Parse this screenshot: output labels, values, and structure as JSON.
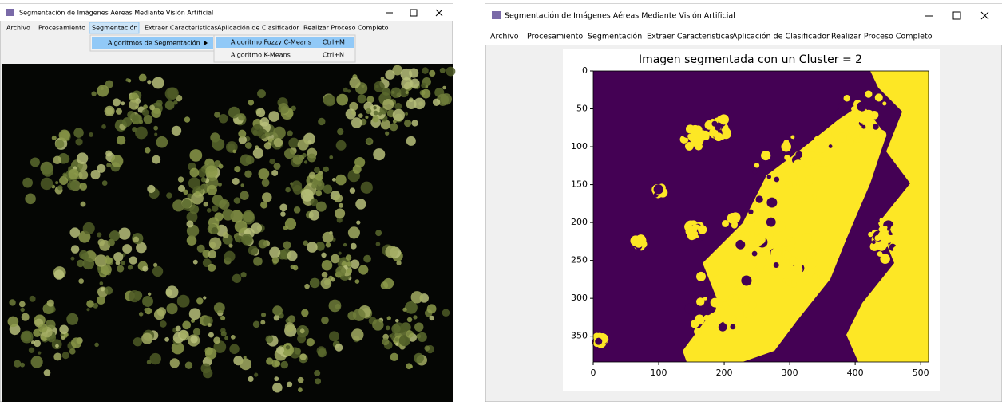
{
  "left_window": {
    "title": "Segmentación de Imágenes Aéreas Mediante Visión Artificial",
    "menu": [
      "Archivo",
      "Procesamiento",
      "Segmentación",
      "Extraer Caracteristicas",
      "Aplicación de Clasificador",
      "Realizar Proceso Completo"
    ],
    "submenu": [
      "Algoritmos de Segmentación"
    ],
    "items": [
      {
        "label": "Algoritmo Fuzzy C-Means",
        "shortcut": "Ctrl+M"
      },
      {
        "label": "Algoritmo K-Means",
        "shortcut": "Ctrl+N"
      }
    ]
  },
  "right_window": {
    "title": "Segmentación de Imágenes Aéreas Mediante Visión Artificial",
    "menu": [
      "Archivo",
      "Procesamiento",
      "Segmentación",
      "Extraer Caracteristicas",
      "Aplicación de Clasificador",
      "Realizar Proceso Completo"
    ],
    "plot": {
      "title": "Imagen segmentada con un Cluster = 2",
      "xlim": [
        0,
        512
      ],
      "ylim": [
        0,
        384
      ],
      "xticks": [
        0,
        100,
        200,
        300,
        400,
        500
      ],
      "yticks": [
        0,
        50,
        100,
        150,
        200,
        250,
        300,
        350
      ]
    }
  }
}
